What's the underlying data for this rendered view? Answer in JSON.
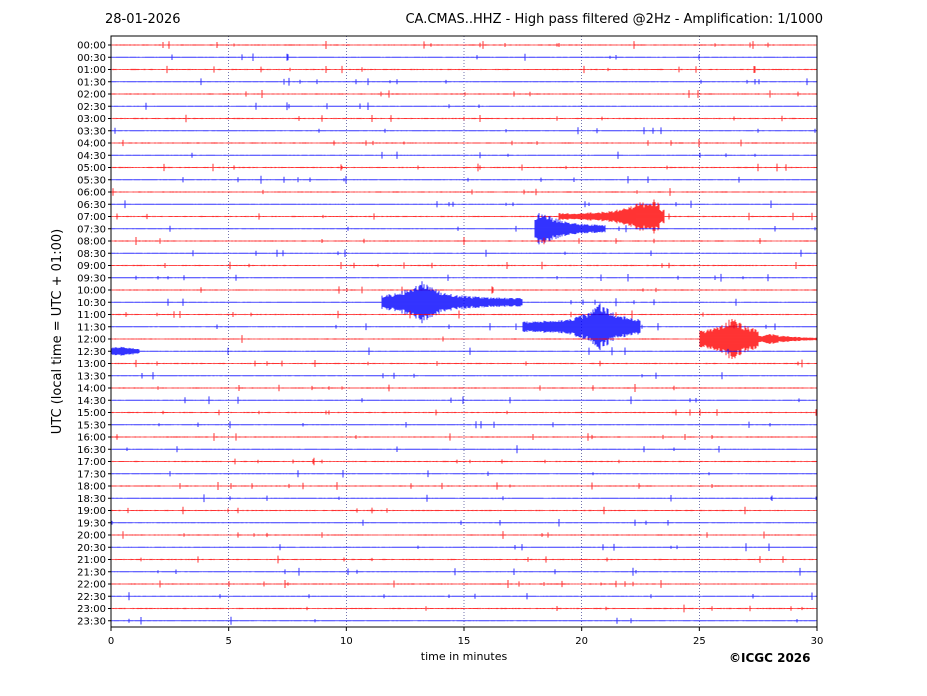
{
  "header": {
    "date": "28-01-2026",
    "title": "CA.CMAS..HHZ - High pass filtered @2Hz - Amplification: 1/1000"
  },
  "copyright": "©ICGC 2026",
  "chart_data": {
    "type": "line",
    "title": "CA.CMAS..HHZ - High pass filtered @2Hz - Amplification: 1/1000",
    "xlabel": "time in minutes",
    "ylabel": "UTC (local time = UTC + 01:00)",
    "xlim": [
      0,
      30
    ],
    "x_ticks": [
      0,
      5,
      10,
      15,
      20,
      25,
      30
    ],
    "grid_x": true,
    "grid_style": "dotted vertical lines at every 5 minutes",
    "rows": [
      "00:00",
      "00:30",
      "01:00",
      "01:30",
      "02:00",
      "02:30",
      "03:00",
      "03:30",
      "04:00",
      "04:30",
      "05:00",
      "05:30",
      "06:00",
      "06:30",
      "07:00",
      "07:30",
      "08:00",
      "08:30",
      "09:00",
      "09:30",
      "10:00",
      "10:30",
      "11:00",
      "11:30",
      "12:00",
      "12:30",
      "13:00",
      "13:30",
      "14:00",
      "14:30",
      "15:00",
      "15:30",
      "16:00",
      "16:30",
      "17:00",
      "17:30",
      "18:00",
      "18:30",
      "19:00",
      "19:30",
      "20:00",
      "20:30",
      "21:00",
      "21:30",
      "22:00",
      "22:30",
      "23:00",
      "23:30"
    ],
    "colors": [
      "#ff0000",
      "#0000ff"
    ],
    "events": [
      {
        "row": "07:00",
        "start": 19.0,
        "end": 23.5,
        "peak": 22.5,
        "amplitude": 0.9
      },
      {
        "row": "07:00",
        "start": 22.8,
        "end": 23.3,
        "peak": 23.1,
        "amplitude": 1.0
      },
      {
        "row": "07:30",
        "start": 18.0,
        "end": 21.0,
        "peak": 18.3,
        "amplitude": 1.0
      },
      {
        "row": "10:30",
        "start": 11.5,
        "end": 17.5,
        "peak": 13.2,
        "amplitude": 1.3
      },
      {
        "row": "11:30",
        "start": 17.5,
        "end": 22.5,
        "peak": 20.8,
        "amplitude": 1.4
      },
      {
        "row": "12:00",
        "start": 25.0,
        "end": 27.5,
        "peak": 26.4,
        "amplitude": 1.3
      },
      {
        "row": "12:00",
        "start": 27.5,
        "end": 30.0,
        "peak": 28.0,
        "amplitude": 0.3
      },
      {
        "row": "12:30",
        "start": 0.0,
        "end": 1.2,
        "peak": 0.4,
        "amplitude": 0.3
      }
    ]
  }
}
